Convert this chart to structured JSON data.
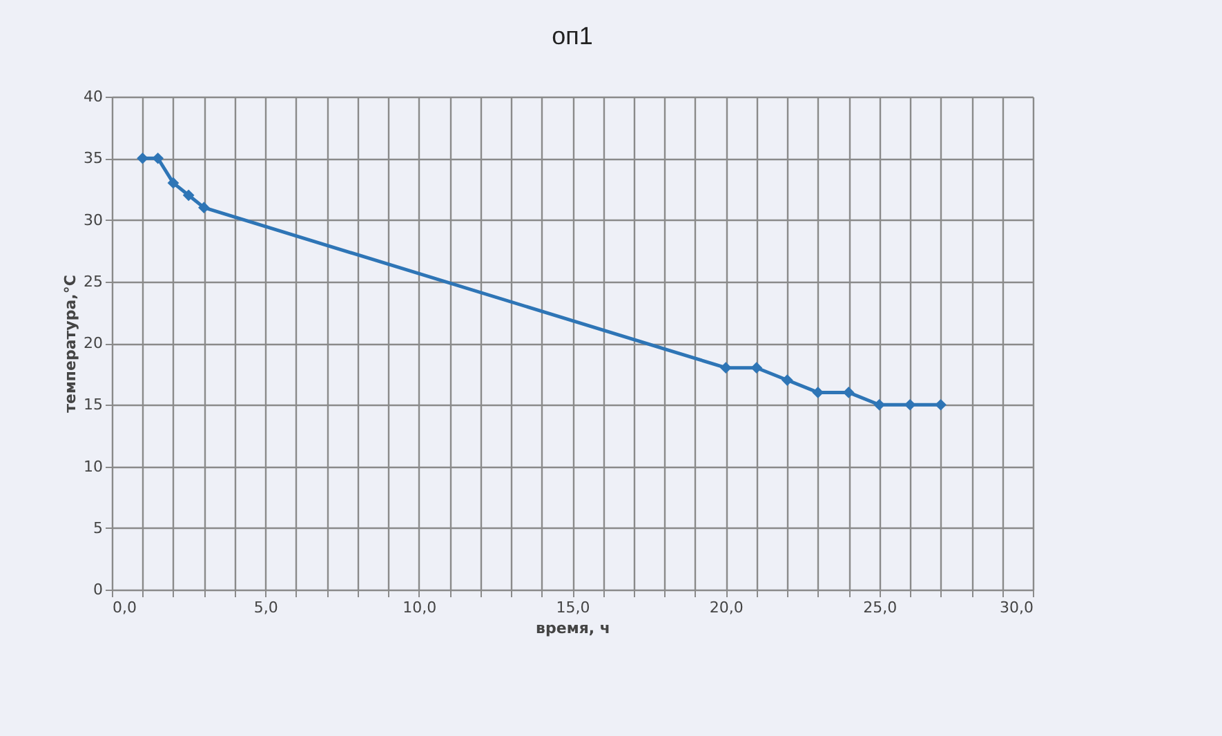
{
  "chart_data": {
    "type": "line",
    "title": "оп1",
    "xlabel": "время, ч",
    "ylabel": "температура,°С",
    "x": [
      1,
      1.5,
      2,
      2.5,
      3,
      20,
      21,
      22,
      23,
      24,
      25,
      26,
      27
    ],
    "series": [
      {
        "color": "#2e75b6",
        "values": [
          35,
          35,
          33,
          32,
          31,
          18,
          18,
          17,
          16,
          16,
          15,
          15,
          15
        ]
      }
    ],
    "xlim": [
      0,
      30
    ],
    "xticks": [
      {
        "value": 0,
        "label": "0,0"
      },
      {
        "value": 1,
        "label": null
      },
      {
        "value": 2,
        "label": null
      },
      {
        "value": 3,
        "label": null
      },
      {
        "value": 4,
        "label": null
      },
      {
        "value": 5,
        "label": "5,0"
      },
      {
        "value": 6,
        "label": null
      },
      {
        "value": 7,
        "label": null
      },
      {
        "value": 8,
        "label": null
      },
      {
        "value": 9,
        "label": null
      },
      {
        "value": 10,
        "label": "10,0"
      },
      {
        "value": 11,
        "label": null
      },
      {
        "value": 12,
        "label": null
      },
      {
        "value": 13,
        "label": null
      },
      {
        "value": 14,
        "label": null
      },
      {
        "value": 15,
        "label": "15,0"
      },
      {
        "value": 16,
        "label": null
      },
      {
        "value": 17,
        "label": null
      },
      {
        "value": 18,
        "label": null
      },
      {
        "value": 19,
        "label": null
      },
      {
        "value": 20,
        "label": "20,0"
      },
      {
        "value": 21,
        "label": null
      },
      {
        "value": 22,
        "label": null
      },
      {
        "value": 23,
        "label": null
      },
      {
        "value": 24,
        "label": null
      },
      {
        "value": 25,
        "label": "25,0"
      },
      {
        "value": 26,
        "label": null
      },
      {
        "value": 27,
        "label": null
      },
      {
        "value": 28,
        "label": null
      },
      {
        "value": 29,
        "label": null
      },
      {
        "value": 30,
        "label": "30,0"
      }
    ],
    "ylim": [
      0,
      40
    ],
    "yticks": [
      0,
      5,
      10,
      15,
      20,
      25,
      30,
      35,
      40
    ],
    "grid": true,
    "marker": "diamond",
    "line_style": "solid"
  }
}
